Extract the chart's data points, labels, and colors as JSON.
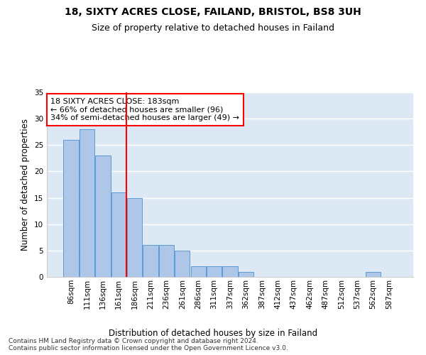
{
  "title": "18, SIXTY ACRES CLOSE, FAILAND, BRISTOL, BS8 3UH",
  "subtitle": "Size of property relative to detached houses in Failand",
  "xlabel": "Distribution of detached houses by size in Failand",
  "ylabel": "Number of detached properties",
  "bin_labels": [
    "86sqm",
    "111sqm",
    "136sqm",
    "161sqm",
    "186sqm",
    "211sqm",
    "236sqm",
    "261sqm",
    "286sqm",
    "311sqm",
    "337sqm",
    "362sqm",
    "387sqm",
    "412sqm",
    "437sqm",
    "462sqm",
    "487sqm",
    "512sqm",
    "537sqm",
    "562sqm",
    "587sqm"
  ],
  "bin_values": [
    26,
    28,
    23,
    16,
    15,
    6,
    6,
    5,
    2,
    2,
    2,
    1,
    0,
    0,
    0,
    0,
    0,
    0,
    0,
    1,
    0
  ],
  "bar_color": "#aec6e8",
  "bar_edge_color": "#5b9bd5",
  "vline_bin": 3.5,
  "vline_color": "red",
  "annotation_text": "18 SIXTY ACRES CLOSE: 183sqm\n← 66% of detached houses are smaller (96)\n34% of semi-detached houses are larger (49) →",
  "annotation_box_color": "white",
  "annotation_box_edge": "red",
  "ylim": [
    0,
    35
  ],
  "yticks": [
    0,
    5,
    10,
    15,
    20,
    25,
    30,
    35
  ],
  "footer": "Contains HM Land Registry data © Crown copyright and database right 2024.\nContains public sector information licensed under the Open Government Licence v3.0.",
  "title_fontsize": 10,
  "subtitle_fontsize": 9,
  "tick_fontsize": 7.5,
  "ylabel_fontsize": 8.5,
  "xlabel_fontsize": 8.5,
  "annot_fontsize": 8,
  "footer_fontsize": 6.5,
  "bg_color": "#eaf0f8",
  "plot_bg_color": "#dce9f5"
}
